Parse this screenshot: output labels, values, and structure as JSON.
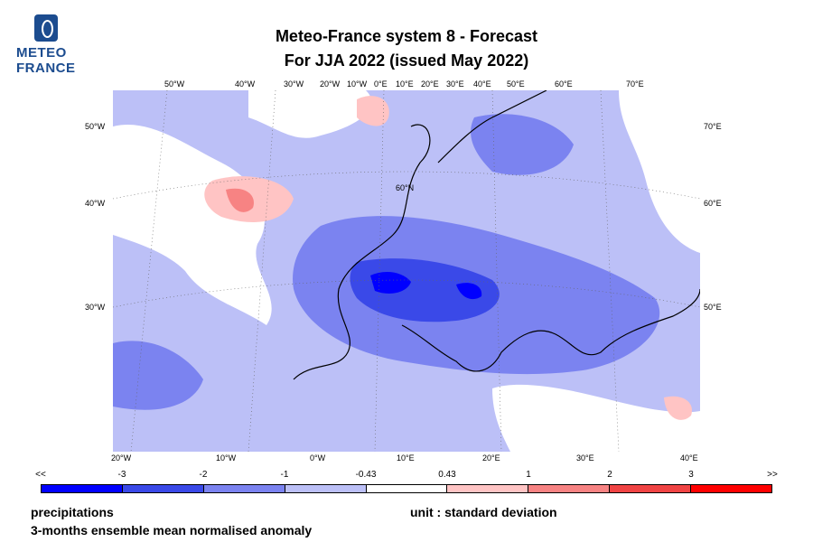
{
  "logo": {
    "line1": "METEO",
    "line2": "FRANCE"
  },
  "title": {
    "line1": "Meteo-France system 8  -  Forecast",
    "line2": "For JJA 2022      (issued May 2022)"
  },
  "map": {
    "top_lon_labels": [
      "50°W",
      "40°W",
      "30°W",
      "20°W",
      "10°W",
      "0°E",
      "10°E",
      "20°E",
      "30°E",
      "40°E",
      "50°E",
      "60°E",
      "70°E"
    ],
    "bottom_lon_labels": [
      "20°W",
      "10°W",
      "0°W",
      "10°E",
      "20°E",
      "30°E",
      "40°E"
    ],
    "left_lat_labels": [
      "50°W",
      "40°W",
      "30°W"
    ],
    "right_lat_labels": [
      "70°E",
      "60°E",
      "50°E"
    ],
    "inner_label": "60°N"
  },
  "colorbar": {
    "labels": [
      "<<",
      "-3",
      "-2",
      "-1",
      "-0.43",
      "0.43",
      "1",
      "2",
      "3",
      ">>"
    ],
    "colors": [
      "#0000ff",
      "#3a49e8",
      "#7b83f0",
      "#bcc0f7",
      "#ffffff",
      "#ffc4c4",
      "#f78383",
      "#f04444",
      "#ff0000"
    ]
  },
  "footer": {
    "variable": "precipitations",
    "description": "3-months ensemble mean normalised anomaly",
    "unit": "unit : standard deviation"
  }
}
